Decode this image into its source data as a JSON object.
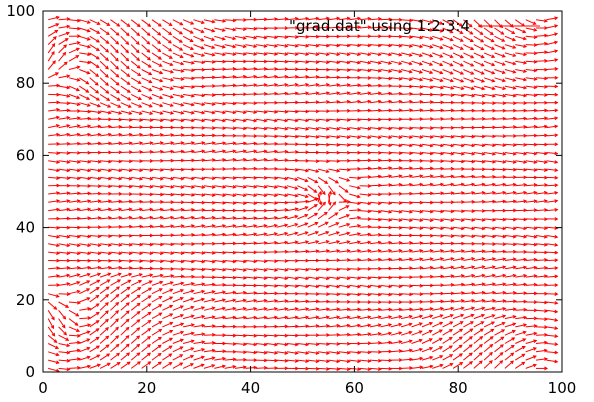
{
  "chart_data": {
    "type": "vector-field",
    "title": "",
    "xlabel": "",
    "ylabel": "",
    "xlim": [
      0,
      100
    ],
    "ylim": [
      0,
      100
    ],
    "x_ticks": [
      "0",
      "20",
      "40",
      "60",
      "80",
      "100"
    ],
    "y_ticks": [
      "0",
      "20",
      "40",
      "60",
      "80",
      "100"
    ],
    "x_tick_values": [
      0,
      20,
      40,
      60,
      80,
      100
    ],
    "y_tick_values": [
      0,
      20,
      40,
      60,
      80,
      100
    ],
    "grid": false,
    "legend": {
      "label": "\"grad.dat\" using 1:2:3:4",
      "placement": "top-right"
    },
    "series": [
      {
        "name": "\"grad.dat\" using 1:2:3:4",
        "color": "#ff0000",
        "description_of_field": "arrows mostly horizontal across domain, radial-inward singularity near (52,48), swirling near the four corners",
        "center": [
          52,
          48
        ],
        "grid_step_x": 2,
        "grid_step_y": 2.3
      }
    ]
  }
}
